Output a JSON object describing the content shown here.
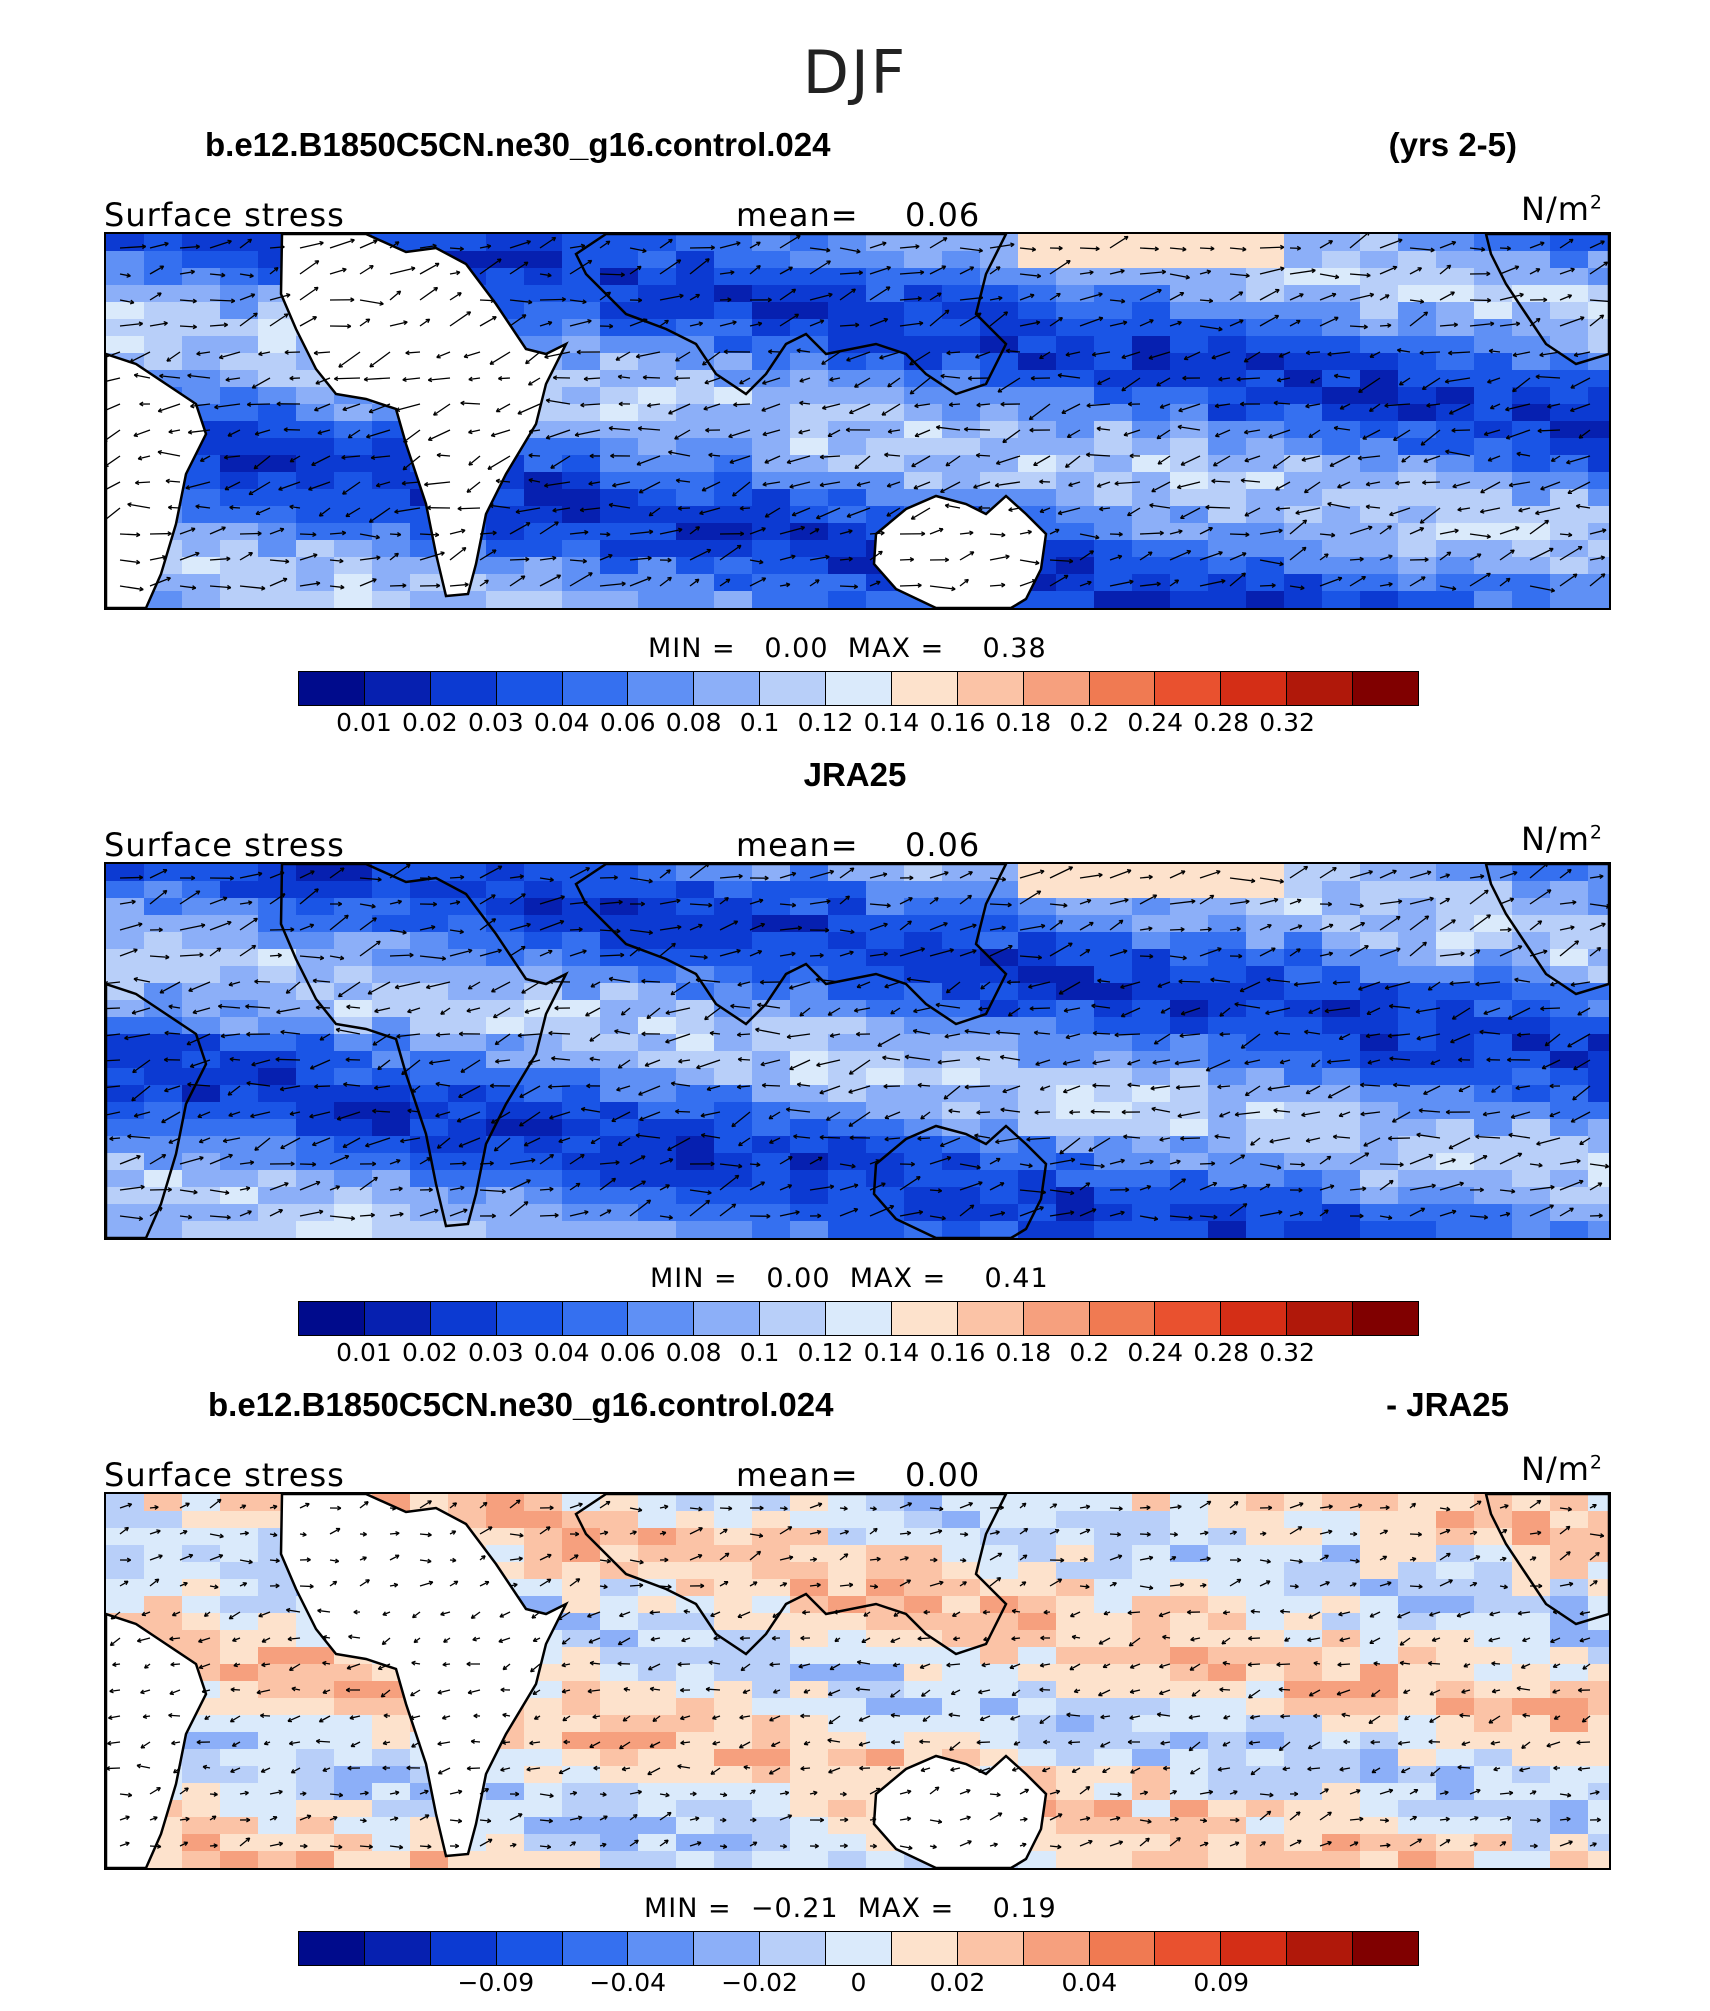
{
  "figure": {
    "title": "DJF"
  },
  "panels": [
    {
      "id": "model",
      "case_title": "b.e12.B1850C5CN.ne30_g16.control.024",
      "case_title_right": "(yrs 2-5)",
      "variable": "Surface stress",
      "mean_label": "mean=",
      "mean_value": "0.06",
      "units": "N/m",
      "units_exp": "2",
      "min_label": "MIN =",
      "min_value": "0.00",
      "max_label": "MAX =",
      "max_value": "0.38",
      "field": "magnitude",
      "colorbar_ticks": [
        "0.01",
        "0.02",
        "0.03",
        "0.04",
        "0.06",
        "0.08",
        "0.1",
        "0.12",
        "0.14",
        "0.16",
        "0.18",
        "0.2",
        "0.24",
        "0.28",
        "0.32"
      ]
    },
    {
      "id": "obs",
      "case_title": "JRA25",
      "case_title_right": "",
      "variable": "Surface stress",
      "mean_label": "mean=",
      "mean_value": "0.06",
      "units": "N/m",
      "units_exp": "2",
      "min_label": "MIN =",
      "min_value": "0.00",
      "max_label": "MAX =",
      "max_value": "0.41",
      "field": "magnitude",
      "colorbar_ticks": [
        "0.01",
        "0.02",
        "0.03",
        "0.04",
        "0.06",
        "0.08",
        "0.1",
        "0.12",
        "0.14",
        "0.16",
        "0.18",
        "0.2",
        "0.24",
        "0.28",
        "0.32"
      ]
    },
    {
      "id": "diff",
      "case_title": "b.e12.B1850C5CN.ne30_g16.control.024",
      "case_title_right": "- JRA25",
      "variable": "Surface stress",
      "mean_label": "mean=",
      "mean_value": "0.00",
      "units": "N/m",
      "units_exp": "2",
      "min_label": "MIN =",
      "min_value": "−0.21",
      "max_label": "MAX =",
      "max_value": "0.19",
      "field": "difference",
      "colorbar_ticks": [
        "−0.09",
        "−0.04",
        "−0.02",
        "0",
        "0.02",
        "0.04",
        "0.09"
      ]
    }
  ],
  "colors": {
    "magnitude_scale": [
      "#000b8c",
      "#0620b0",
      "#0c3ad2",
      "#1a55e6",
      "#3570f0",
      "#5f90f5",
      "#8caff8",
      "#b8cff9",
      "#daeafb",
      "#fde2cc",
      "#fbc3a6",
      "#f6a07e",
      "#f07a52",
      "#e9512f",
      "#d42e16",
      "#b0180a",
      "#800000"
    ],
    "difference_scale": [
      "#000b8c",
      "#0620b0",
      "#0c3ad2",
      "#1a55e6",
      "#3570f0",
      "#5f90f5",
      "#8caff8",
      "#b8cff9",
      "#daeafb",
      "#fde2cc",
      "#fbc3a6",
      "#f6a07e",
      "#f07a52",
      "#e9512f",
      "#d42e16",
      "#b0180a",
      "#800000"
    ],
    "land": "#ffffff",
    "coast": "#000000",
    "vectors": "#000000"
  }
}
